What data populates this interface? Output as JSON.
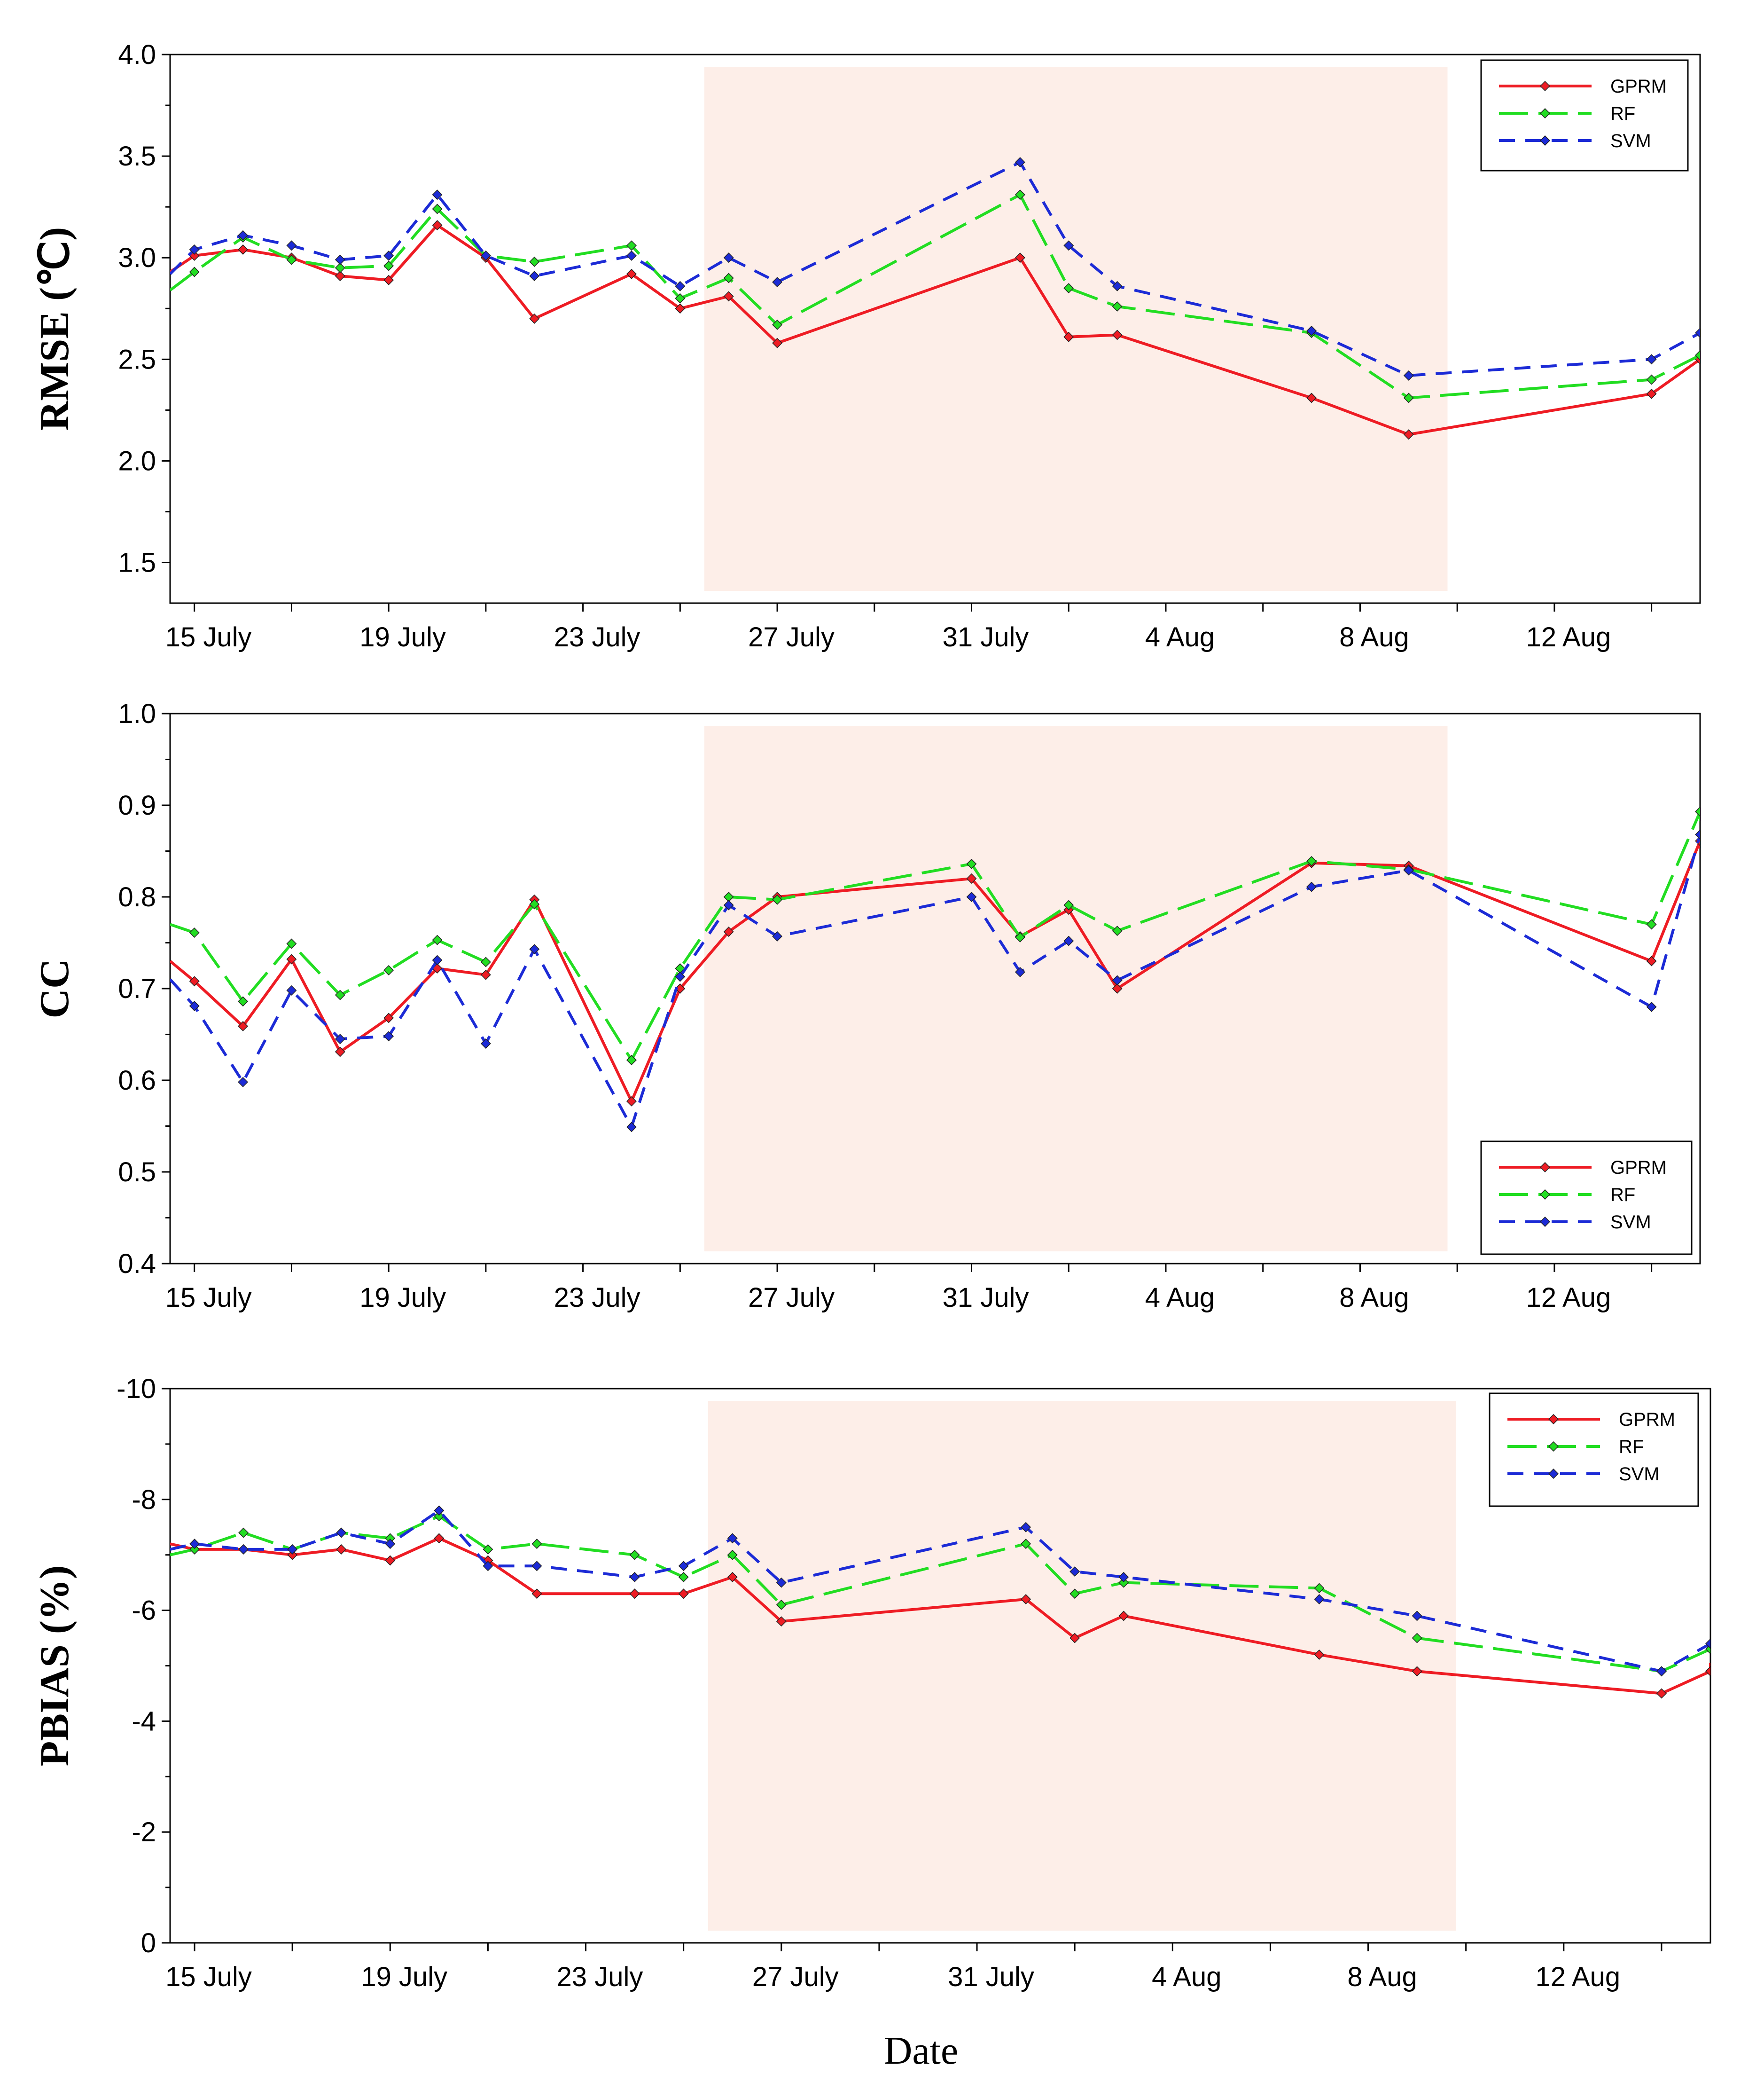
{
  "figure": {
    "xlabel": "Date"
  },
  "chart_data": [
    {
      "type": "line",
      "title": "",
      "ylabel": "RMSE (℃)",
      "xlabel": "",
      "ylim": [
        1.3,
        4.0
      ],
      "yticks": [
        "1.5",
        "2.0",
        "2.5",
        "3.0",
        "3.5",
        "4.0"
      ],
      "ytick_values": [
        1.5,
        2.0,
        2.5,
        3.0,
        3.5,
        4.0
      ],
      "xlim": [
        14.5,
        46.0
      ],
      "xticks": [
        "15 July",
        "19 July",
        "23 July",
        "27 July",
        "31 July",
        "4 Aug",
        "8 Aug",
        "12 Aug"
      ],
      "xtick_values": [
        15,
        19,
        23,
        27,
        31,
        35,
        39,
        43
      ],
      "shaded_region": [
        25.5,
        40.8
      ],
      "legend_position": "top-right",
      "x": [
        14.5,
        15,
        16,
        17,
        18,
        19,
        20,
        21,
        22,
        24,
        25,
        26,
        27,
        32,
        33,
        34,
        38,
        40,
        45,
        46,
        46.0
      ],
      "series": [
        {
          "name": "GPRM",
          "color": "#ee1c24",
          "dash": "solid",
          "values": [
            2.93,
            3.01,
            3.04,
            3.0,
            2.91,
            2.89,
            3.16,
            3.0,
            2.7,
            2.92,
            2.75,
            2.81,
            2.58,
            3.0,
            2.61,
            2.62,
            2.31,
            2.13,
            2.33,
            2.5,
            2.51
          ]
        },
        {
          "name": "RF",
          "color": "#22dd22",
          "dash": "long",
          "values": [
            2.84,
            2.93,
            3.1,
            2.99,
            2.95,
            2.96,
            3.24,
            3.01,
            2.98,
            3.06,
            2.8,
            2.9,
            2.67,
            3.31,
            2.85,
            2.76,
            2.63,
            2.31,
            2.4,
            2.52,
            2.53
          ]
        },
        {
          "name": "SVM",
          "color": "#1c2bd6",
          "dash": "short",
          "values": [
            2.92,
            3.04,
            3.11,
            3.06,
            2.99,
            3.01,
            3.31,
            3.01,
            2.91,
            3.01,
            2.86,
            3.0,
            2.88,
            3.47,
            3.06,
            2.86,
            2.64,
            2.42,
            2.5,
            2.63,
            2.63
          ]
        }
      ]
    },
    {
      "type": "line",
      "title": "",
      "ylabel": "CC",
      "xlabel": "",
      "ylim": [
        0.4,
        1.0
      ],
      "yticks": [
        "0.4",
        "0.5",
        "0.6",
        "0.7",
        "0.8",
        "0.9",
        "1.0"
      ],
      "ytick_values": [
        0.4,
        0.5,
        0.6,
        0.7,
        0.8,
        0.9,
        1.0
      ],
      "xlim": [
        14.5,
        46.0
      ],
      "xticks": [
        "15 July",
        "19 July",
        "23 July",
        "27 July",
        "31 July",
        "4 Aug",
        "8 Aug",
        "12 Aug"
      ],
      "xtick_values": [
        15,
        19,
        23,
        27,
        31,
        35,
        39,
        43
      ],
      "shaded_region": [
        25.5,
        40.8
      ],
      "legend_position": "bottom-right",
      "x": [
        14.5,
        15,
        16,
        17,
        18,
        19,
        20,
        21,
        22,
        24,
        25,
        26,
        27,
        31,
        32,
        33,
        34,
        38,
        40,
        45,
        46,
        46.0
      ],
      "series": [
        {
          "name": "GPRM",
          "color": "#ee1c24",
          "dash": "solid",
          "values": [
            0.73,
            0.708,
            0.659,
            0.732,
            0.631,
            0.668,
            0.722,
            0.715,
            0.797,
            0.577,
            0.7,
            0.762,
            0.8,
            0.82,
            0.757,
            0.786,
            0.7,
            0.837,
            0.834,
            0.73,
            0.861,
            0.853
          ]
        },
        {
          "name": "RF",
          "color": "#22dd22",
          "dash": "long",
          "values": [
            0.77,
            0.761,
            0.686,
            0.749,
            0.693,
            0.72,
            0.753,
            0.729,
            0.792,
            0.622,
            0.722,
            0.8,
            0.797,
            0.836,
            0.756,
            0.791,
            0.763,
            0.839,
            0.83,
            0.77,
            0.893,
            0.883
          ]
        },
        {
          "name": "SVM",
          "color": "#1c2bd6",
          "dash": "short",
          "values": [
            0.71,
            0.681,
            0.598,
            0.698,
            0.645,
            0.648,
            0.731,
            0.64,
            0.743,
            0.549,
            0.713,
            0.791,
            0.757,
            0.8,
            0.718,
            0.752,
            0.709,
            0.811,
            0.829,
            0.68,
            0.868,
            0.861
          ]
        }
      ]
    },
    {
      "type": "line",
      "title": "",
      "ylabel": "PBIAS (%)",
      "xlabel": "Date",
      "ylim": [
        0,
        -10
      ],
      "yticks": [
        "0",
        "-2",
        "-4",
        "-6",
        "-8",
        "-10"
      ],
      "ytick_values": [
        0,
        -2,
        -4,
        -6,
        -8,
        -10
      ],
      "xlim": [
        14.5,
        46.0
      ],
      "xticks": [
        "15 July",
        "19 July",
        "23 July",
        "27 July",
        "31 July",
        "4 Aug",
        "8 Aug",
        "12 Aug"
      ],
      "xtick_values": [
        15,
        19,
        23,
        27,
        31,
        35,
        39,
        43
      ],
      "shaded_region": [
        25.5,
        40.8
      ],
      "legend_position": "top-right",
      "x": [
        14.5,
        15,
        16,
        17,
        18,
        19,
        20,
        21,
        22,
        24,
        25,
        26,
        27,
        32,
        33,
        34,
        38,
        40,
        45,
        46,
        46.0
      ],
      "series": [
        {
          "name": "GPRM",
          "color": "#ee1c24",
          "dash": "solid",
          "values": [
            -7.2,
            -7.1,
            -7.1,
            -7.0,
            -7.1,
            -6.9,
            -7.3,
            -6.9,
            -6.3,
            -6.3,
            -6.3,
            -6.6,
            -5.8,
            -6.2,
            -5.5,
            -5.9,
            -5.2,
            -4.9,
            -4.5,
            -4.9,
            -5.05
          ]
        },
        {
          "name": "RF",
          "color": "#22dd22",
          "dash": "long",
          "values": [
            -7.0,
            -7.1,
            -7.4,
            -7.1,
            -7.4,
            -7.3,
            -7.7,
            -7.1,
            -7.2,
            -7.0,
            -6.6,
            -7.0,
            -6.1,
            -7.2,
            -6.3,
            -6.5,
            -6.4,
            -5.5,
            -4.9,
            -5.3,
            -5.5
          ]
        },
        {
          "name": "SVM",
          "color": "#1c2bd6",
          "dash": "short",
          "values": [
            -7.1,
            -7.2,
            -7.1,
            -7.1,
            -7.4,
            -7.2,
            -7.8,
            -6.8,
            -6.8,
            -6.6,
            -6.8,
            -7.3,
            -6.5,
            -7.5,
            -6.7,
            -6.6,
            -6.2,
            -5.9,
            -4.9,
            -5.4,
            -5.5
          ]
        }
      ]
    }
  ]
}
